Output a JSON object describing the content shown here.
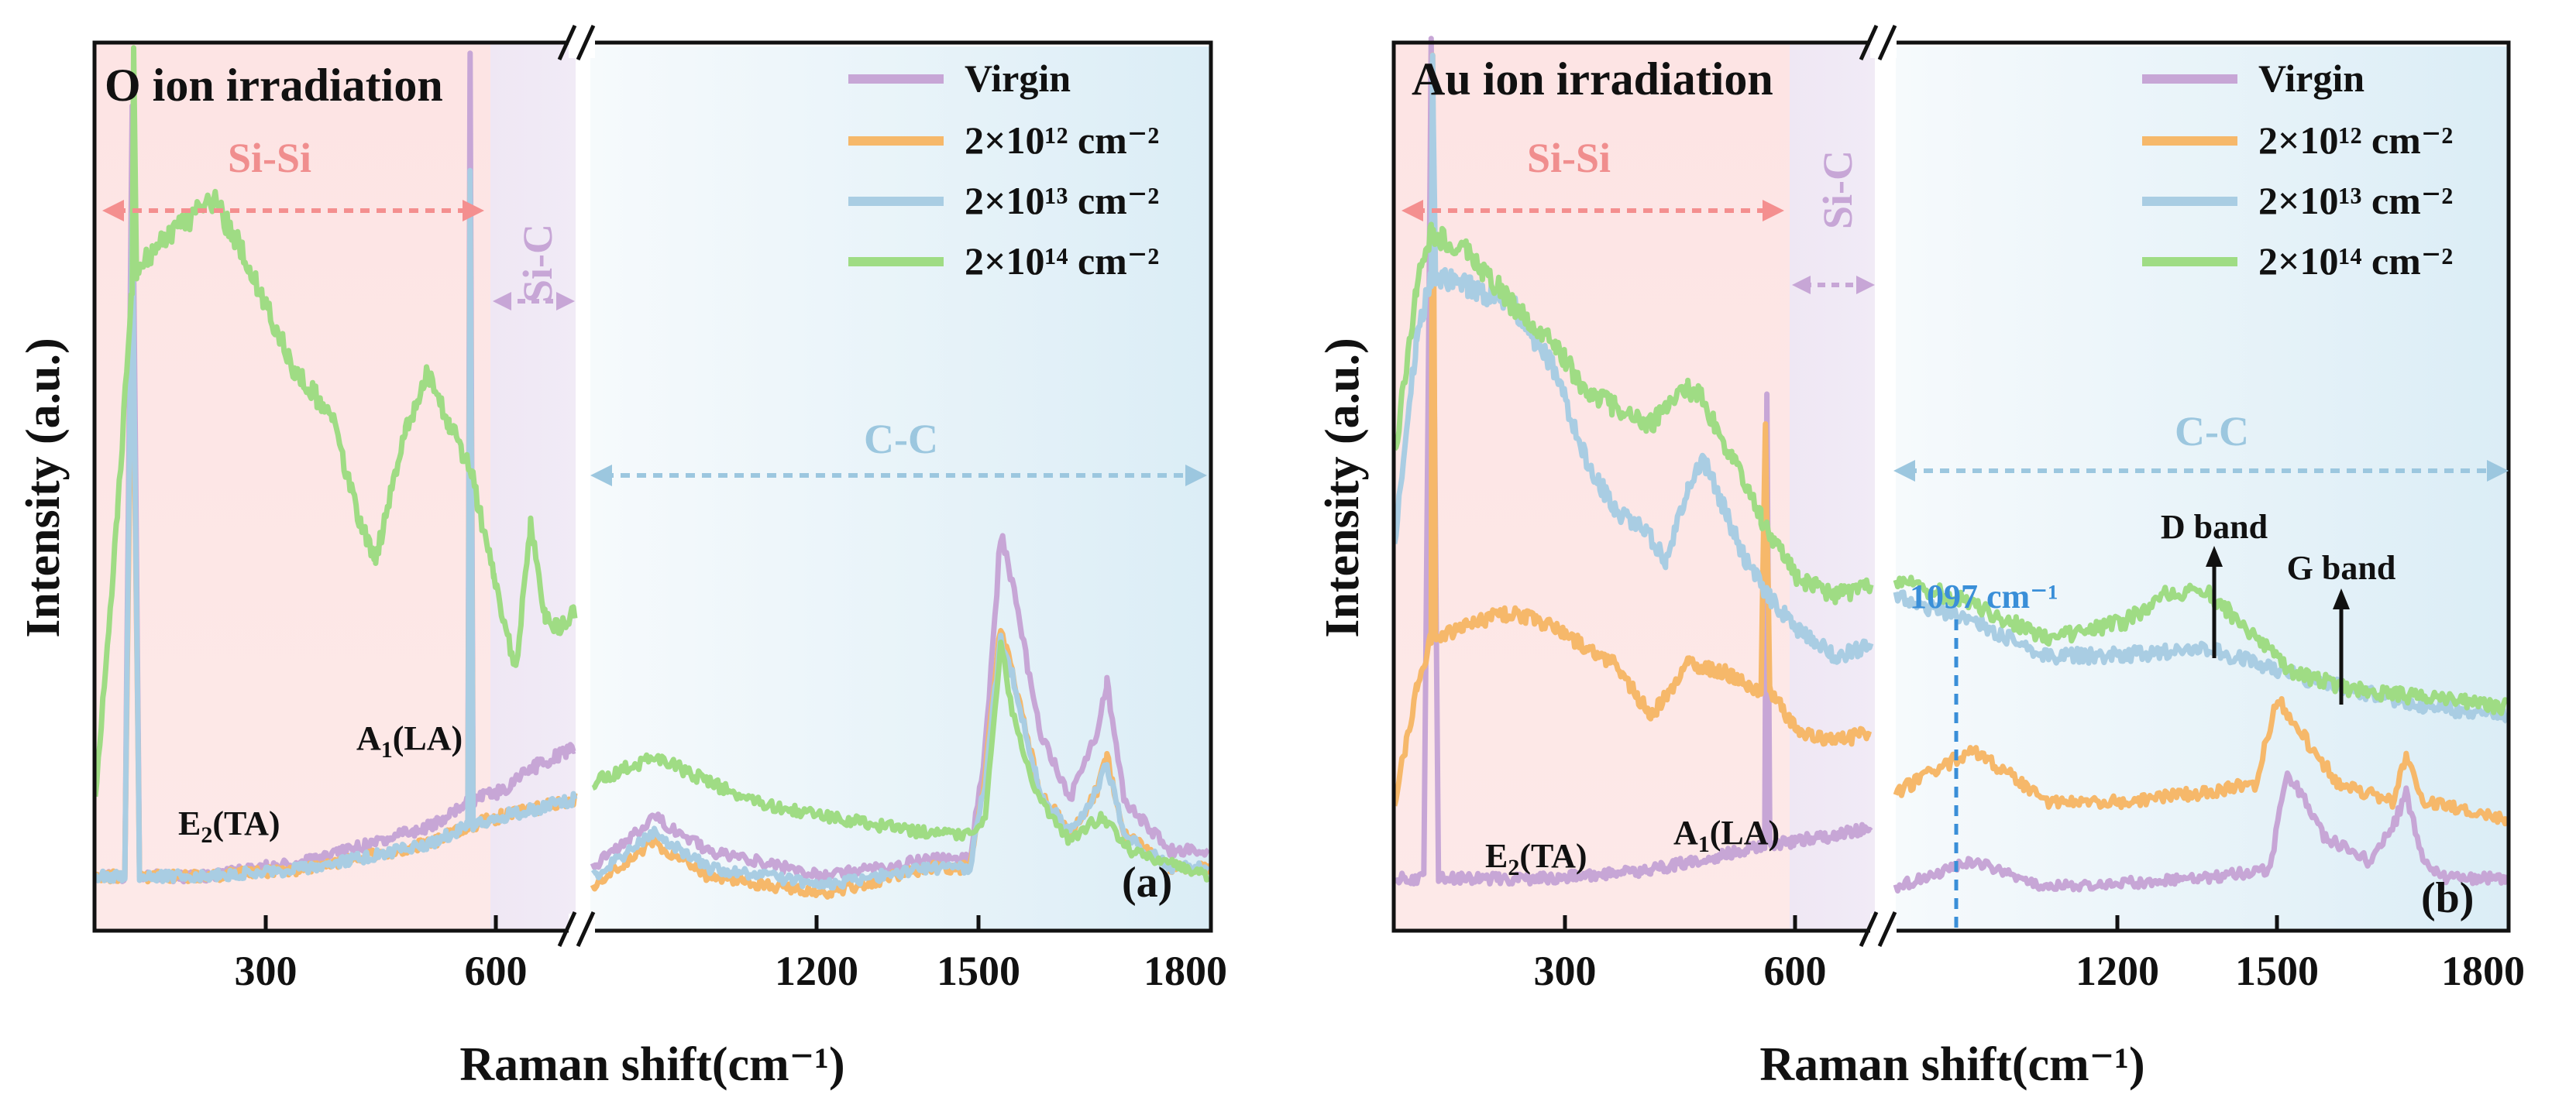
{
  "chart_data": [
    {
      "panel": "(a)",
      "type": "line",
      "title": "O ion irradiation",
      "xlabel": "Raman shift(cm⁻¹)",
      "ylabel": "Intensity (a.u.)",
      "x_segments": [
        [
          100,
          750
        ],
        [
          1000,
          1800
        ]
      ],
      "x_ticks": [
        "300",
        "600",
        "1200",
        "1500",
        "1800"
      ],
      "legend": [
        "Virgin",
        "2×10¹² cm⁻²",
        "2×10¹³ cm⁻²",
        "2×10¹⁴ cm⁻²"
      ],
      "regions": [
        "Si-Si",
        "Si-C",
        "C-C"
      ],
      "annotations": [
        "E₂(TA)",
        "A₁(LA)"
      ],
      "series": [
        {
          "name": "Virgin",
          "seg1": [
            [
              100,
              0.03
            ],
            [
              140,
              0.03
            ],
            [
              150,
              0.93
            ],
            [
              160,
              0.03
            ],
            [
              250,
              0.03
            ],
            [
              400,
              0.05
            ],
            [
              560,
              0.09
            ],
            [
              605,
              0.12
            ],
            [
              608,
              1.0
            ],
            [
              612,
              0.12
            ],
            [
              650,
              0.13
            ],
            [
              700,
              0.16
            ],
            [
              750,
              0.18
            ]
          ],
          "seg2": [
            [
              1000,
              0.04
            ],
            [
              1080,
              0.1
            ],
            [
              1150,
              0.06
            ],
            [
              1300,
              0.03
            ],
            [
              1440,
              0.05
            ],
            [
              1490,
              0.05
            ],
            [
              1510,
              0.18
            ],
            [
              1530,
              0.43
            ],
            [
              1550,
              0.35
            ],
            [
              1580,
              0.2
            ],
            [
              1620,
              0.12
            ],
            [
              1655,
              0.2
            ],
            [
              1668,
              0.26
            ],
            [
              1690,
              0.12
            ],
            [
              1750,
              0.06
            ],
            [
              1800,
              0.06
            ]
          ]
        },
        {
          "name": "2×10¹² cm⁻²",
          "seg1": [
            [
              100,
              0.03
            ],
            [
              140,
              0.03
            ],
            [
              150,
              0.75
            ],
            [
              160,
              0.03
            ],
            [
              250,
              0.03
            ],
            [
              400,
              0.04
            ],
            [
              560,
              0.07
            ],
            [
              605,
              0.09
            ],
            [
              608,
              0.85
            ],
            [
              612,
              0.09
            ],
            [
              650,
              0.1
            ],
            [
              700,
              0.11
            ],
            [
              750,
              0.12
            ]
          ],
          "seg2": [
            [
              1000,
              0.02
            ],
            [
              1080,
              0.07
            ],
            [
              1150,
              0.03
            ],
            [
              1300,
              0.01
            ],
            [
              1440,
              0.04
            ],
            [
              1490,
              0.04
            ],
            [
              1510,
              0.15
            ],
            [
              1530,
              0.32
            ],
            [
              1550,
              0.25
            ],
            [
              1580,
              0.13
            ],
            [
              1620,
              0.08
            ],
            [
              1655,
              0.13
            ],
            [
              1668,
              0.17
            ],
            [
              1690,
              0.08
            ],
            [
              1750,
              0.04
            ],
            [
              1800,
              0.04
            ]
          ]
        },
        {
          "name": "2×10¹³ cm⁻²",
          "seg1": [
            [
              100,
              0.03
            ],
            [
              140,
              0.03
            ],
            [
              150,
              0.8
            ],
            [
              160,
              0.03
            ],
            [
              250,
              0.03
            ],
            [
              400,
              0.04
            ],
            [
              560,
              0.07
            ],
            [
              605,
              0.09
            ],
            [
              608,
              0.85
            ],
            [
              612,
              0.09
            ],
            [
              650,
              0.1
            ],
            [
              700,
              0.11
            ],
            [
              750,
              0.12
            ]
          ],
          "seg2": [
            [
              1000,
              0.03
            ],
            [
              1080,
              0.08
            ],
            [
              1150,
              0.04
            ],
            [
              1300,
              0.02
            ],
            [
              1440,
              0.04
            ],
            [
              1490,
              0.04
            ],
            [
              1510,
              0.14
            ],
            [
              1530,
              0.31
            ],
            [
              1550,
              0.25
            ],
            [
              1580,
              0.13
            ],
            [
              1620,
              0.08
            ],
            [
              1655,
              0.13
            ],
            [
              1668,
              0.16
            ],
            [
              1690,
              0.08
            ],
            [
              1750,
              0.04
            ],
            [
              1800,
              0.04
            ]
          ]
        },
        {
          "name": "2×10¹⁴ cm⁻²",
          "seg1": [
            [
              100,
              0.12
            ],
            [
              130,
              0.45
            ],
            [
              150,
              0.72
            ],
            [
              152,
              1.0
            ],
            [
              156,
              0.74
            ],
            [
              200,
              0.78
            ],
            [
              260,
              0.82
            ],
            [
              300,
              0.76
            ],
            [
              370,
              0.62
            ],
            [
              420,
              0.57
            ],
            [
              460,
              0.44
            ],
            [
              480,
              0.4
            ],
            [
              520,
              0.55
            ],
            [
              550,
              0.62
            ],
            [
              580,
              0.56
            ],
            [
              610,
              0.5
            ],
            [
              640,
              0.38
            ],
            [
              670,
              0.27
            ],
            [
              690,
              0.44
            ],
            [
              710,
              0.33
            ],
            [
              730,
              0.32
            ],
            [
              750,
              0.34
            ]
          ],
          "seg2": [
            [
              1000,
              0.14
            ],
            [
              1080,
              0.17
            ],
            [
              1200,
              0.12
            ],
            [
              1300,
              0.1
            ],
            [
              1440,
              0.08
            ],
            [
              1490,
              0.08
            ],
            [
              1510,
              0.1
            ],
            [
              1530,
              0.3
            ],
            [
              1550,
              0.2
            ],
            [
              1580,
              0.12
            ],
            [
              1620,
              0.07
            ],
            [
              1660,
              0.1
            ],
            [
              1700,
              0.06
            ],
            [
              1800,
              0.03
            ]
          ]
        }
      ]
    },
    {
      "panel": "(b)",
      "type": "line",
      "title": "Au ion irradiation",
      "xlabel": "Raman shift(cm⁻¹)",
      "ylabel": "Intensity (a.u.)",
      "x_segments": [
        [
          100,
          750
        ],
        [
          1000,
          1800
        ]
      ],
      "x_ticks": [
        "300",
        "600",
        "1200",
        "1500",
        "1800"
      ],
      "legend": [
        "Virgin",
        "2×10¹² cm⁻²",
        "2×10¹³ cm⁻²",
        "2×10¹⁴ cm⁻²"
      ],
      "regions": [
        "Si-Si",
        "Si-C",
        "C-C"
      ],
      "annotations": [
        "E₂(TA)",
        "A₁(LA)",
        "1097 cm⁻¹",
        "D band",
        "G band"
      ],
      "marker_x": 1097,
      "series": [
        {
          "name": "Virgin",
          "seg1": [
            [
              100,
              0.03
            ],
            [
              140,
              0.03
            ],
            [
              150,
              1.0
            ],
            [
              160,
              0.03
            ],
            [
              300,
              0.03
            ],
            [
              450,
              0.04
            ],
            [
              560,
              0.06
            ],
            [
              605,
              0.07
            ],
            [
              608,
              0.6
            ],
            [
              612,
              0.07
            ],
            [
              700,
              0.08
            ],
            [
              750,
              0.09
            ]
          ],
          "seg2": [
            [
              1000,
              0.02
            ],
            [
              1100,
              0.05
            ],
            [
              1200,
              0.02
            ],
            [
              1400,
              0.03
            ],
            [
              1490,
              0.04
            ],
            [
              1510,
              0.15
            ],
            [
              1530,
              0.13
            ],
            [
              1560,
              0.08
            ],
            [
              1620,
              0.05
            ],
            [
              1655,
              0.1
            ],
            [
              1668,
              0.13
            ],
            [
              1690,
              0.05
            ],
            [
              1720,
              0.03
            ],
            [
              1800,
              0.03
            ]
          ]
        },
        {
          "name": "2×10¹² cm⁻²",
          "seg1": [
            [
              100,
              0.12
            ],
            [
              130,
              0.25
            ],
            [
              150,
              0.31
            ],
            [
              152,
              1.0
            ],
            [
              156,
              0.31
            ],
            [
              250,
              0.34
            ],
            [
              300,
              0.33
            ],
            [
              400,
              0.28
            ],
            [
              450,
              0.22
            ],
            [
              500,
              0.28
            ],
            [
              550,
              0.27
            ],
            [
              600,
              0.25
            ],
            [
              606,
              0.55
            ],
            [
              612,
              0.25
            ],
            [
              650,
              0.2
            ],
            [
              700,
              0.19
            ],
            [
              750,
              0.2
            ]
          ],
          "seg2": [
            [
              1000,
              0.13
            ],
            [
              1100,
              0.18
            ],
            [
              1200,
              0.12
            ],
            [
              1300,
              0.12
            ],
            [
              1400,
              0.13
            ],
            [
              1470,
              0.14
            ],
            [
              1500,
              0.24
            ],
            [
              1530,
              0.2
            ],
            [
              1580,
              0.14
            ],
            [
              1650,
              0.12
            ],
            [
              1668,
              0.17
            ],
            [
              1690,
              0.12
            ],
            [
              1800,
              0.1
            ]
          ]
        },
        {
          "name": "2×10¹³ cm⁻²",
          "seg1": [
            [
              100,
              0.42
            ],
            [
              130,
              0.66
            ],
            [
              150,
              0.73
            ],
            [
              152,
              0.98
            ],
            [
              156,
              0.73
            ],
            [
              200,
              0.72
            ],
            [
              260,
              0.7
            ],
            [
              320,
              0.62
            ],
            [
              360,
              0.52
            ],
            [
              400,
              0.46
            ],
            [
              440,
              0.44
            ],
            [
              470,
              0.4
            ],
            [
              500,
              0.48
            ],
            [
              520,
              0.52
            ],
            [
              550,
              0.46
            ],
            [
              580,
              0.4
            ],
            [
              610,
              0.36
            ],
            [
              650,
              0.32
            ],
            [
              700,
              0.29
            ],
            [
              750,
              0.3
            ]
          ],
          "seg2": [
            [
              1000,
              0.36
            ],
            [
              1100,
              0.33
            ],
            [
              1200,
              0.29
            ],
            [
              1300,
              0.29
            ],
            [
              1400,
              0.3
            ],
            [
              1480,
              0.28
            ],
            [
              1550,
              0.26
            ],
            [
              1650,
              0.24
            ],
            [
              1700,
              0.23
            ],
            [
              1800,
              0.22
            ]
          ]
        },
        {
          "name": "2×10¹⁴ cm⁻²",
          "seg1": [
            [
              100,
              0.52
            ],
            [
              130,
              0.72
            ],
            [
              150,
              0.78
            ],
            [
              200,
              0.76
            ],
            [
              260,
              0.7
            ],
            [
              320,
              0.65
            ],
            [
              360,
              0.6
            ],
            [
              400,
              0.58
            ],
            [
              450,
              0.56
            ],
            [
              500,
              0.6
            ],
            [
              520,
              0.59
            ],
            [
              560,
              0.52
            ],
            [
              600,
              0.45
            ],
            [
              650,
              0.38
            ],
            [
              700,
              0.36
            ],
            [
              750,
              0.37
            ]
          ],
          "seg2": [
            [
              1000,
              0.38
            ],
            [
              1100,
              0.35
            ],
            [
              1200,
              0.31
            ],
            [
              1300,
              0.33
            ],
            [
              1350,
              0.36
            ],
            [
              1400,
              0.37
            ],
            [
              1450,
              0.33
            ],
            [
              1520,
              0.27
            ],
            [
              1600,
              0.25
            ],
            [
              1700,
              0.24
            ],
            [
              1800,
              0.23
            ]
          ]
        }
      ]
    }
  ],
  "colors": {
    "virgin": "#c7a6d6",
    "s12": "#f6b86a",
    "s13": "#a9cde3",
    "s14": "#9fdc84",
    "sisi_text": "#f08e8e",
    "sic_text": "#c7a6d6",
    "cc_text": "#9cc7df",
    "marker": "#3a8fd8"
  }
}
